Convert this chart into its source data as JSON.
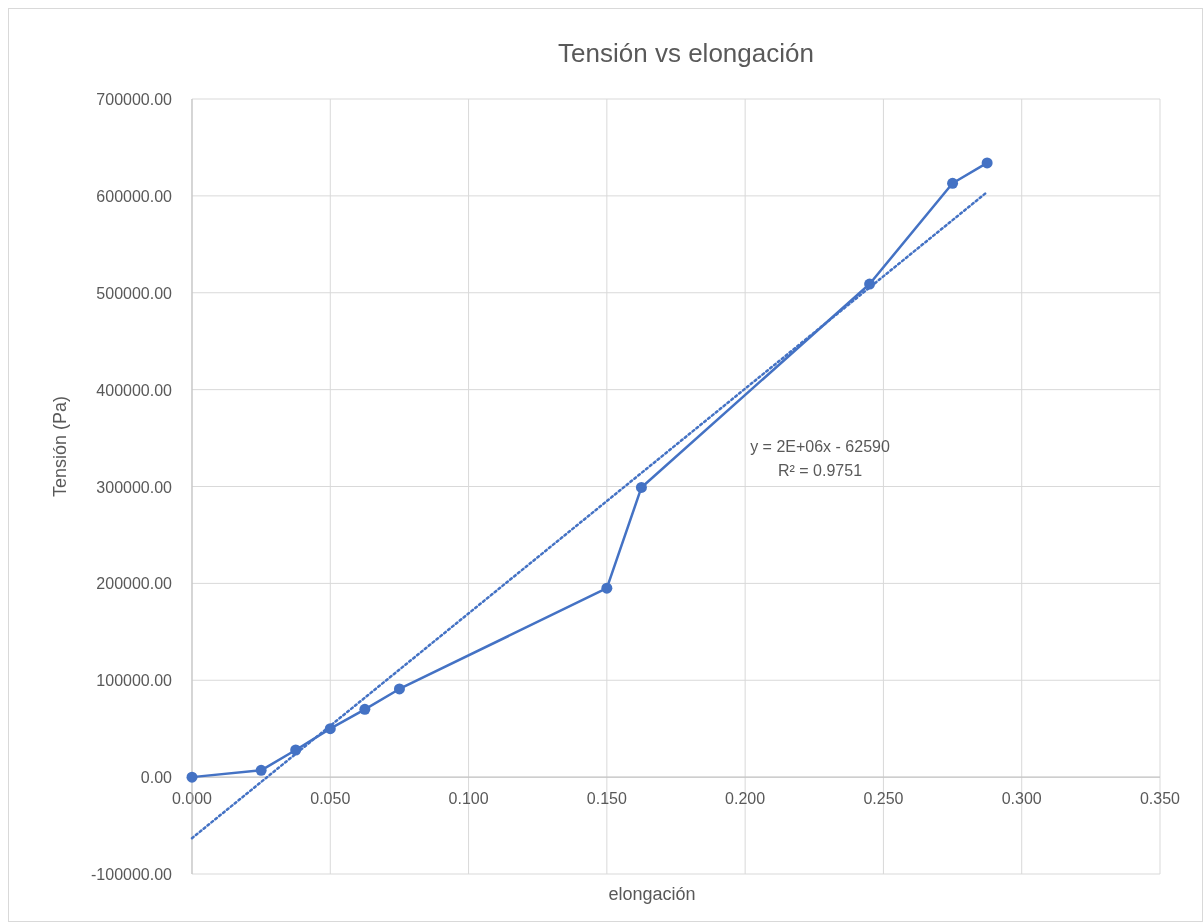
{
  "chart_data": {
    "type": "line",
    "title": "Tensión vs elongación",
    "xlabel": "elongación",
    "ylabel": "Tensión (Pa)",
    "xlim": [
      0,
      0.35
    ],
    "xticks": [
      {
        "value": 0,
        "label": "0.000"
      },
      {
        "value": 0.05,
        "label": "0.050"
      },
      {
        "value": 0.1,
        "label": "0.100"
      },
      {
        "value": 0.15,
        "label": "0.150"
      },
      {
        "value": 0.2,
        "label": "0.200"
      },
      {
        "value": 0.25,
        "label": "0.250"
      },
      {
        "value": 0.3,
        "label": "0.300"
      },
      {
        "value": 0.35,
        "label": "0.350"
      }
    ],
    "ylim": [
      -100000,
      700000
    ],
    "yticks": [
      {
        "value": -100000,
        "label": "-100000.00"
      },
      {
        "value": 0,
        "label": "0.00"
      },
      {
        "value": 100000,
        "label": "100000.00"
      },
      {
        "value": 200000,
        "label": "200000.00"
      },
      {
        "value": 300000,
        "label": "300000.00"
      },
      {
        "value": 400000,
        "label": "400000.00"
      },
      {
        "value": 500000,
        "label": "500000.00"
      },
      {
        "value": 600000,
        "label": "600000.00"
      },
      {
        "value": 700000,
        "label": "700000.00"
      }
    ],
    "grid": true,
    "marker": "circle",
    "line_style": "solid",
    "series": [
      {
        "color": "#4472c4",
        "x": [
          0,
          0.025,
          0.0375,
          0.05,
          0.0625,
          0.075,
          0.15,
          0.1625,
          0.245,
          0.275,
          0.2875
        ],
        "values": [
          0,
          7000,
          28000,
          50000,
          70000,
          91000,
          195000,
          299000,
          509000,
          613000,
          634000
        ]
      },
      {
        "type": "line",
        "color": "#4472c4",
        "marker": "none",
        "line_style": "dotted",
        "x": [
          0,
          0.2875
        ],
        "values": [
          -63000,
          604000
        ]
      }
    ],
    "annotations": [
      "y = 2E+06x - 62590",
      "R² = 0.9751"
    ]
  }
}
